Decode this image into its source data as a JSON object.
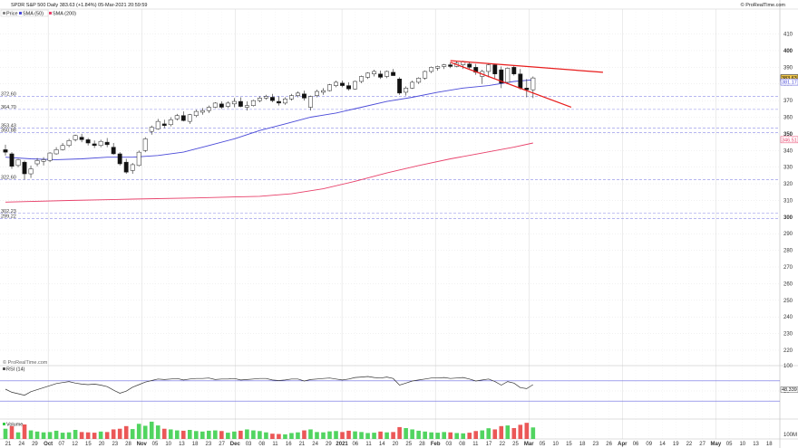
{
  "header": {
    "title": "SPDR S&P 500 Daily 383.63 (+1.84%) 05-Mar-2021 20:59:59",
    "brand": "© ProRealTime.com",
    "watermark": "© ProRealTime.com"
  },
  "legend": {
    "price": "Price",
    "sma50": "SMA (50)",
    "sma200": "SMA (200)",
    "rsi": "RSI (14)",
    "volume": "Volume"
  },
  "colors": {
    "sma50": "#4a4ad8",
    "sma200": "#e8406a",
    "trendline": "#e81c1c",
    "level": "#8a8ae6",
    "grid": "#dcdcdc",
    "volume": "#33cc44",
    "volume_down": "#e83a3a",
    "last_price_tag": "#f2c94c"
  },
  "chart_data": [
    {
      "type": "candlestick",
      "title": "SPDR S&P 500 Daily 383.63 (+1.84%) 05-Mar-2021 20:59:59",
      "grid": true,
      "ylim": [
        214,
        425
      ],
      "y_ticks": [
        "410",
        "400",
        "390",
        "380",
        "370",
        "360",
        "350",
        "340",
        "330",
        "320",
        "310",
        "300",
        "290",
        "280",
        "270",
        "260",
        "250",
        "240",
        "230",
        "220"
      ],
      "y_ticks_bold": [
        "400",
        "350",
        "300"
      ],
      "x_ticks": [
        "21",
        "24",
        "29",
        "Oct",
        "07",
        "12",
        "15",
        "20",
        "23",
        "28",
        "Nov",
        "05",
        "10",
        "13",
        "18",
        "23",
        "27",
        "Dec",
        "03",
        "08",
        "11",
        "16",
        "21",
        "24",
        "29",
        "2021",
        "06",
        "11",
        "14",
        "20",
        "25",
        "28",
        "Feb",
        "03",
        "08",
        "11",
        "17",
        "22",
        "25",
        "Mar",
        "05",
        "10",
        "15",
        "18",
        "23",
        "26",
        "Apr",
        "06",
        "09",
        "14",
        "19",
        "22",
        "27",
        "May",
        "05",
        "10",
        "13",
        "18"
      ],
      "x_ticks_bold": [
        "Oct",
        "Nov",
        "Dec",
        "2021",
        "Feb",
        "Mar",
        "Apr",
        "May"
      ],
      "candles": [
        [
          340.5,
          343.5,
          337.0,
          339.0
        ],
        [
          338.0,
          339.0,
          329.0,
          330.5
        ],
        [
          331.0,
          335.0,
          330.0,
          334.5
        ],
        [
          333.0,
          334.0,
          322.5,
          326.0
        ],
        [
          326.0,
          331.0,
          323.5,
          329.0
        ],
        [
          332.0,
          335.5,
          330.5,
          334.0
        ],
        [
          333.5,
          336.0,
          331.0,
          334.5
        ],
        [
          334.0,
          339.0,
          333.0,
          338.5
        ],
        [
          338.0,
          342.0,
          337.5,
          340.5
        ],
        [
          340.5,
          344.5,
          340.0,
          343.0
        ],
        [
          343.0,
          347.0,
          342.0,
          346.0
        ],
        [
          346.5,
          349.5,
          345.5,
          349.0
        ],
        [
          348.0,
          350.0,
          345.0,
          346.5
        ],
        [
          346.5,
          347.5,
          343.0,
          344.5
        ],
        [
          344.0,
          346.0,
          341.5,
          343.0
        ],
        [
          343.0,
          346.5,
          342.0,
          345.5
        ],
        [
          345.0,
          347.5,
          342.0,
          343.5
        ],
        [
          342.0,
          344.5,
          337.5,
          338.0
        ],
        [
          338.0,
          339.0,
          331.0,
          332.0
        ],
        [
          333.0,
          335.0,
          326.0,
          327.0
        ],
        [
          328.0,
          332.5,
          326.0,
          331.5
        ],
        [
          331.0,
          340.0,
          330.5,
          339.0
        ],
        [
          340.0,
          348.0,
          339.0,
          347.0
        ],
        [
          351.5,
          355.0,
          349.5,
          354.0
        ],
        [
          353.0,
          359.0,
          352.5,
          357.5
        ],
        [
          356.0,
          358.5,
          353.5,
          355.0
        ],
        [
          355.5,
          360.0,
          354.5,
          358.5
        ],
        [
          359.0,
          362.0,
          358.0,
          361.0
        ],
        [
          361.0,
          363.5,
          357.5,
          358.0
        ],
        [
          357.5,
          362.0,
          356.0,
          361.5
        ],
        [
          361.0,
          364.5,
          360.0,
          363.5
        ],
        [
          363.0,
          365.5,
          361.5,
          364.0
        ],
        [
          364.0,
          367.0,
          362.5,
          366.0
        ],
        [
          366.0,
          369.0,
          365.5,
          368.5
        ],
        [
          368.0,
          369.5,
          365.0,
          366.0
        ],
        [
          366.5,
          369.5,
          365.5,
          368.5
        ],
        [
          368.0,
          371.5,
          366.0,
          369.5
        ],
        [
          369.5,
          372.0,
          366.0,
          366.5
        ],
        [
          366.0,
          369.5,
          364.0,
          367.0
        ],
        [
          367.0,
          370.5,
          366.5,
          370.0
        ],
        [
          370.0,
          372.5,
          369.0,
          371.5
        ],
        [
          371.5,
          373.5,
          370.5,
          372.5
        ],
        [
          372.0,
          374.0,
          369.0,
          370.0
        ],
        [
          369.5,
          372.5,
          367.0,
          368.5
        ],
        [
          368.5,
          372.0,
          367.5,
          371.0
        ],
        [
          371.0,
          374.0,
          370.0,
          373.0
        ],
        [
          373.0,
          375.5,
          372.0,
          374.5
        ],
        [
          374.0,
          376.0,
          370.0,
          371.5
        ],
        [
          366.0,
          373.0,
          364.0,
          372.5
        ],
        [
          373.0,
          376.5,
          372.0,
          375.5
        ],
        [
          375.0,
          377.5,
          373.5,
          376.0
        ],
        [
          376.0,
          380.0,
          375.5,
          379.5
        ],
        [
          379.0,
          382.0,
          378.0,
          381.0
        ],
        [
          380.5,
          382.0,
          378.0,
          379.0
        ],
        [
          379.0,
          381.0,
          376.0,
          377.0
        ],
        [
          377.0,
          382.0,
          376.5,
          381.5
        ],
        [
          381.5,
          385.0,
          380.5,
          384.5
        ],
        [
          384.0,
          387.0,
          383.0,
          386.5
        ],
        [
          386.0,
          388.5,
          384.5,
          387.5
        ],
        [
          386.0,
          388.0,
          383.0,
          384.0
        ],
        [
          384.5,
          388.0,
          383.5,
          387.5
        ],
        [
          387.0,
          389.0,
          385.5,
          385.0
        ],
        [
          383.0,
          384.0,
          373.5,
          374.5
        ],
        [
          375.0,
          378.5,
          373.0,
          377.5
        ],
        [
          377.5,
          382.0,
          377.0,
          381.0
        ],
        [
          381.0,
          384.0,
          380.0,
          383.5
        ],
        [
          383.5,
          388.0,
          382.5,
          387.5
        ],
        [
          387.5,
          390.5,
          386.5,
          390.0
        ],
        [
          389.5,
          391.0,
          388.0,
          390.5
        ],
        [
          390.5,
          392.0,
          389.0,
          391.5
        ],
        [
          391.5,
          393.0,
          389.5,
          390.5
        ],
        [
          390.5,
          393.5,
          390.0,
          392.5
        ],
        [
          391.5,
          394.0,
          389.0,
          393.5
        ],
        [
          392.0,
          393.0,
          388.5,
          390.0
        ],
        [
          390.0,
          392.0,
          385.5,
          387.0
        ],
        [
          384.5,
          388.5,
          380.0,
          387.5
        ],
        [
          387.5,
          392.5,
          384.0,
          391.5
        ],
        [
          391.5,
          392.0,
          383.5,
          386.0
        ],
        [
          388.5,
          390.5,
          377.5,
          380.5
        ],
        [
          381.0,
          390.0,
          380.5,
          389.5
        ],
        [
          390.0,
          391.0,
          385.0,
          386.0
        ],
        [
          386.0,
          389.0,
          376.5,
          377.5
        ],
        [
          377.5,
          383.0,
          372.0,
          376.5
        ],
        [
          376.5,
          384.5,
          371.5,
          383.6
        ]
      ],
      "sma50": [
        [
          0,
          336.0
        ],
        [
          4,
          335.0
        ],
        [
          8,
          334.5
        ],
        [
          12,
          335.0
        ],
        [
          16,
          336.0
        ],
        [
          20,
          336.0
        ],
        [
          24,
          337.0
        ],
        [
          28,
          339.0
        ],
        [
          32,
          343.0
        ],
        [
          36,
          347.0
        ],
        [
          40,
          352.0
        ],
        [
          44,
          356.0
        ],
        [
          48,
          360.0
        ],
        [
          52,
          362.5
        ],
        [
          56,
          366.0
        ],
        [
          60,
          369.5
        ],
        [
          64,
          372.0
        ],
        [
          68,
          375.0
        ],
        [
          72,
          377.5
        ],
        [
          76,
          379.0
        ],
        [
          80,
          381.5
        ],
        [
          83,
          382.5
        ]
      ],
      "sma200": [
        [
          0,
          309.0
        ],
        [
          10,
          310.0
        ],
        [
          20,
          310.8
        ],
        [
          30,
          311.5
        ],
        [
          40,
          312.5
        ],
        [
          45,
          314.0
        ],
        [
          50,
          317.0
        ],
        [
          55,
          321.5
        ],
        [
          60,
          326.5
        ],
        [
          65,
          331.0
        ],
        [
          70,
          335.0
        ],
        [
          75,
          338.5
        ],
        [
          80,
          342.0
        ],
        [
          83,
          344.5
        ]
      ],
      "trendlines": [
        {
          "from": [
            70,
            394.0
          ],
          "to": [
            94,
            387.0
          ]
        },
        {
          "from": [
            70,
            393.0
          ],
          "to": [
            89,
            366.0
          ]
        }
      ],
      "levels": [
        {
          "value": 372.6,
          "label": "372.60"
        },
        {
          "value": 364.7,
          "label": "364.70"
        },
        {
          "value": 353.43,
          "label": "353.43"
        },
        {
          "value": 350.88,
          "label": "350.88"
        },
        {
          "value": 322.6,
          "label": "322.60"
        },
        {
          "value": 302.23,
          "label": "302.23"
        },
        {
          "value": 299.22,
          "label": "299.22"
        }
      ],
      "price_tags": [
        {
          "value": 383.63,
          "label": "383.63",
          "kind": "last"
        },
        {
          "value": 381.17,
          "label": "381.17",
          "kind": "sma50"
        },
        {
          "value": 346.51,
          "label": "346.51",
          "kind": "sma200"
        }
      ]
    },
    {
      "type": "line",
      "title": "RSI (14)",
      "ylim": [
        0,
        100
      ],
      "y_ticks": [
        "100",
        "50"
      ],
      "levels": [
        70,
        30
      ],
      "price_tag": "48.339",
      "values": [
        50,
        44,
        41,
        38,
        45,
        49,
        53,
        57,
        61,
        63,
        65,
        62,
        60,
        59,
        60,
        58,
        55,
        48,
        42,
        46,
        54,
        59,
        64,
        67,
        70,
        69,
        70,
        71,
        68,
        70,
        71,
        71,
        72,
        69,
        70,
        70,
        71,
        68,
        69,
        70,
        71,
        71,
        68,
        67,
        68,
        70,
        70,
        66,
        69,
        70,
        71,
        72,
        70,
        68,
        70,
        73,
        74,
        75,
        73,
        72,
        74,
        71,
        58,
        62,
        66,
        68,
        70,
        72,
        72,
        73,
        71,
        72,
        73,
        70,
        66,
        68,
        70,
        65,
        58,
        65,
        62,
        53,
        51,
        59
      ]
    },
    {
      "type": "bar",
      "title": "Volume",
      "y_ticks": [
        "100M"
      ],
      "values": [
        62,
        78,
        40,
        88,
        52,
        45,
        40,
        42,
        50,
        38,
        40,
        55,
        42,
        40,
        38,
        45,
        42,
        58,
        62,
        78,
        60,
        92,
        80,
        105,
        82,
        62,
        58,
        52,
        50,
        55,
        48,
        45,
        50,
        52,
        48,
        38,
        45,
        50,
        58,
        52,
        48,
        40,
        32,
        30,
        28,
        36,
        40,
        52,
        58,
        42,
        40,
        46,
        48,
        42,
        50,
        46,
        42,
        36,
        38,
        45,
        40,
        42,
        72,
        66,
        58,
        50,
        45,
        40,
        38,
        42,
        40,
        36,
        34,
        38,
        48,
        52,
        65,
        58,
        78,
        82,
        66,
        86,
        98,
        70
      ],
      "up_down": [
        1,
        0,
        1,
        0,
        1,
        1,
        1,
        1,
        1,
        1,
        1,
        1,
        0,
        0,
        0,
        1,
        0,
        0,
        0,
        0,
        1,
        1,
        1,
        1,
        1,
        0,
        1,
        1,
        0,
        1,
        1,
        1,
        1,
        1,
        0,
        1,
        1,
        0,
        1,
        1,
        1,
        1,
        0,
        0,
        1,
        1,
        1,
        0,
        1,
        1,
        1,
        1,
        1,
        0,
        0,
        1,
        1,
        1,
        1,
        0,
        1,
        0,
        0,
        1,
        1,
        1,
        1,
        1,
        1,
        1,
        0,
        1,
        1,
        0,
        0,
        1,
        1,
        0,
        0,
        1,
        0,
        0,
        0,
        1
      ]
    }
  ]
}
